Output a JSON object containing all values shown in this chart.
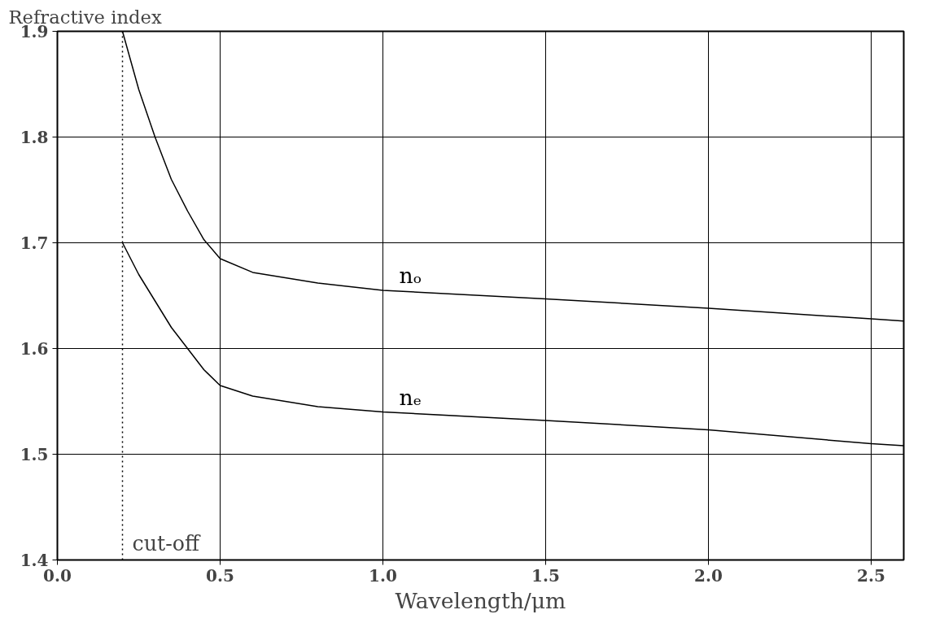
{
  "chart_data": {
    "type": "line",
    "ylabel": "Refractive index",
    "xlabel": "Wavelength/μm",
    "xlim": [
      0,
      2.6
    ],
    "ylim": [
      1.4,
      1.9
    ],
    "xticks": [
      {
        "value": 0,
        "label": "0.0"
      },
      0.5,
      {
        "value": 1,
        "label": "1.0"
      },
      1.5,
      {
        "value": 2,
        "label": "2.0"
      },
      2.5
    ],
    "yticks": [
      1.4,
      1.5,
      1.6,
      1.7,
      1.8,
      1.9
    ],
    "grid": true,
    "line_style": "solid",
    "marker": "none",
    "x": [
      0.2,
      0.25,
      0.3,
      0.35,
      0.4,
      0.45,
      0.5,
      0.6,
      0.8,
      1.0,
      1.5,
      2.0,
      2.5,
      2.6
    ],
    "series": [
      {
        "name": "nₒ",
        "color": "#000000",
        "values": [
          1.9,
          1.845,
          1.8,
          1.76,
          1.73,
          1.703,
          1.685,
          1.672,
          1.662,
          1.655,
          1.647,
          1.638,
          1.628,
          1.626
        ]
      },
      {
        "name": "nₑ",
        "color": "#000000",
        "values": [
          1.7,
          1.67,
          1.645,
          1.62,
          1.6,
          1.58,
          1.565,
          1.555,
          1.545,
          1.54,
          1.532,
          1.523,
          1.51,
          1.508
        ]
      }
    ],
    "ref_lines": [
      {
        "axis": "x",
        "value": 0.2,
        "label": "cut-off",
        "line_style": "dotted",
        "color": "#000000"
      }
    ]
  }
}
